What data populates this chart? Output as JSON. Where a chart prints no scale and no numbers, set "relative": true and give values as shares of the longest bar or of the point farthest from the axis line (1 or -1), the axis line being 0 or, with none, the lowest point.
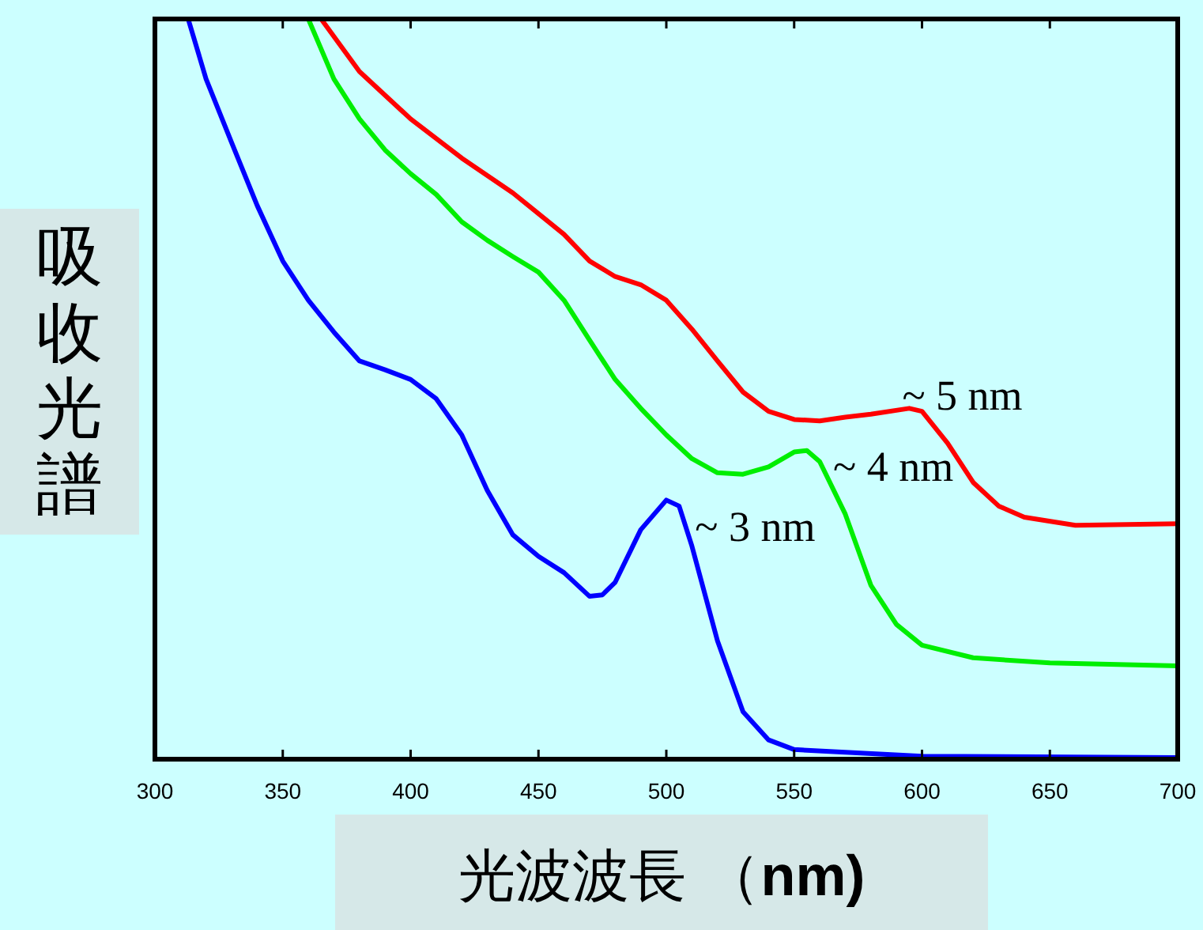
{
  "chart_data": {
    "type": "line",
    "relative": true,
    "xlabel": "光波波長 （**nm)**",
    "ylabel": "吸收光譜",
    "xlim": [
      300,
      700
    ],
    "xticks": [
      300,
      350,
      400,
      450,
      500,
      550,
      600,
      650,
      700
    ],
    "grid": false,
    "marker": "none",
    "line_style": "solid",
    "annotations": [
      {
        "text": "~ 3 nm",
        "x": 510,
        "y": 0.288
      },
      {
        "text": "~ 4 nm",
        "x": 564,
        "y": 0.37
      },
      {
        "text": "~ 5 nm",
        "x": 591,
        "y": 0.466
      }
    ],
    "series": [
      {
        "color": "#0000ff",
        "x": [
          313,
          320,
          330,
          340,
          350,
          360,
          370,
          380,
          390,
          400,
          410,
          420,
          430,
          440,
          450,
          460,
          470,
          475,
          480,
          490,
          500,
          505,
          510,
          520,
          530,
          540,
          550,
          600,
          700
        ],
        "values": [
          1.0,
          0.919,
          0.833,
          0.748,
          0.673,
          0.62,
          0.577,
          0.538,
          0.526,
          0.513,
          0.487,
          0.438,
          0.363,
          0.303,
          0.274,
          0.252,
          0.22,
          0.222,
          0.239,
          0.31,
          0.35,
          0.342,
          0.288,
          0.16,
          0.064,
          0.026,
          0.013,
          0.004,
          0.002
        ]
      },
      {
        "color": "#00ee00",
        "x": [
          360,
          370,
          380,
          390,
          400,
          410,
          420,
          430,
          440,
          450,
          460,
          470,
          480,
          490,
          500,
          510,
          520,
          530,
          540,
          550,
          555,
          560,
          570,
          580,
          590,
          600,
          620,
          650,
          700
        ],
        "values": [
          1.0,
          0.919,
          0.865,
          0.823,
          0.791,
          0.763,
          0.726,
          0.701,
          0.679,
          0.658,
          0.62,
          0.566,
          0.513,
          0.474,
          0.438,
          0.406,
          0.387,
          0.385,
          0.395,
          0.415,
          0.417,
          0.402,
          0.331,
          0.235,
          0.182,
          0.154,
          0.137,
          0.13,
          0.126
        ]
      },
      {
        "color": "#ff0000",
        "x": [
          365,
          380,
          400,
          420,
          440,
          460,
          470,
          480,
          490,
          500,
          510,
          520,
          530,
          540,
          550,
          560,
          570,
          580,
          595,
          600,
          610,
          620,
          630,
          640,
          660,
          700
        ],
        "values": [
          1.0,
          0.929,
          0.865,
          0.812,
          0.765,
          0.709,
          0.673,
          0.652,
          0.641,
          0.62,
          0.581,
          0.538,
          0.496,
          0.47,
          0.459,
          0.457,
          0.462,
          0.466,
          0.474,
          0.47,
          0.427,
          0.374,
          0.342,
          0.327,
          0.316,
          0.318
        ]
      }
    ]
  }
}
